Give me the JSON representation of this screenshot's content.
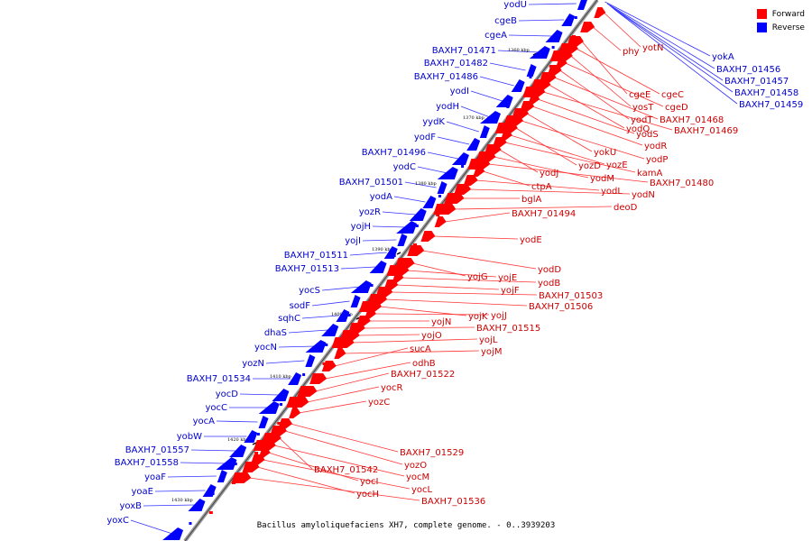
{
  "legend": {
    "forward": "Forward",
    "reverse": "Reverse"
  },
  "colors": {
    "forward": "#ff0000",
    "reverse": "#0000ff",
    "backbone": "#808080"
  },
  "caption": "Bacillus amyloliquefaciens XH7, complete genome. - 0..3939203",
  "ticks": [
    "1360 kbp",
    "1370 kbp",
    "1380 kbp",
    "1390 kbp",
    "1400 kbp",
    "1410 kbp",
    "1420 kbp",
    "1430 kbp"
  ],
  "reverse_genes": [
    "yodU",
    "cgeB",
    "cgeA",
    "BAXH7_01471",
    "BAXH7_01482",
    "BAXH7_01486",
    "yodI",
    "yodH",
    "yydK",
    "yodF",
    "BAXH7_01496",
    "yodC",
    "BAXH7_01501",
    "yodA",
    "yozR",
    "yojH",
    "yojI",
    "BAXH7_01511",
    "BAXH7_01513",
    "yocS",
    "sodF",
    "sqhC",
    "dhaS",
    "yocN",
    "yozN",
    "BAXH7_01534",
    "yocD",
    "yocC",
    "yocA",
    "yobW",
    "BAXH7_01557",
    "BAXH7_01558",
    "yoaF",
    "yoaE",
    "yoxB",
    "yoxC"
  ],
  "reverse_genes_right": [
    "yokA",
    "BAXH7_01456",
    "BAXH7_01457",
    "BAXH7_01458",
    "BAXH7_01459"
  ],
  "forward_genes": [
    "yotN",
    "phy",
    "cgeE",
    "cgeC",
    "yosT",
    "cgeD",
    "yodT",
    "BAXH7_01468",
    "yodQ",
    "BAXH7_01469",
    "yodS",
    "yodR",
    "yokU",
    "yodP",
    "yozD",
    "yozE",
    "kamA",
    "yodJ",
    "yodM",
    "BAXH7_01480",
    "ctpA",
    "yodL",
    "yodN",
    "bglA",
    "deoD",
    "BAXH7_01494",
    "yodE",
    "yodD",
    "yojG",
    "yojE",
    "yodB",
    "yojF",
    "BAXH7_01503",
    "BAXH7_01506",
    "yojK",
    "yojJ",
    "yojN",
    "BAXH7_01515",
    "yojO",
    "yojL",
    "yojM",
    "sucA",
    "odhB",
    "BAXH7_01522",
    "yocR",
    "yozC",
    "BAXH7_01529",
    "yozO",
    "BAXH7_01542",
    "yocM",
    "yocI",
    "yocL",
    "yocH",
    "BAXH7_01536"
  ]
}
